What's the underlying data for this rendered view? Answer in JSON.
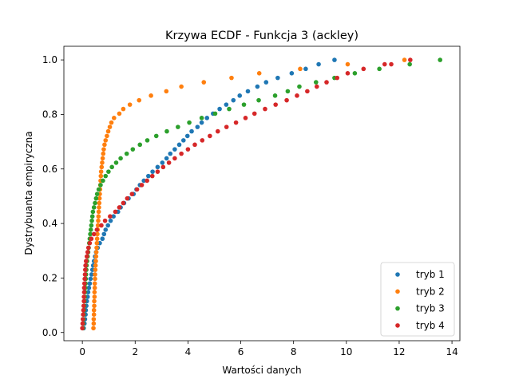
{
  "chart_data": {
    "type": "scatter",
    "title": "Krzywa ECDF - Funkcja 3 (ackley)",
    "xlabel": "Wartości danych",
    "ylabel": "Dystrybuanta empiryczna",
    "xlim": [
      -0.7,
      14.3
    ],
    "ylim": [
      -0.03,
      1.05
    ],
    "xticks": [
      0,
      2,
      4,
      6,
      8,
      10,
      12,
      14
    ],
    "yticks": [
      0.0,
      0.2,
      0.4,
      0.6,
      0.8,
      1.0
    ],
    "xtick_labels": [
      "0",
      "2",
      "4",
      "6",
      "8",
      "10",
      "12",
      "14"
    ],
    "ytick_labels": [
      "0.0",
      "0.2",
      "0.4",
      "0.6",
      "0.8",
      "1.0"
    ],
    "grid": false,
    "legend_position": "lower-right",
    "series": [
      {
        "name": "tryb 1",
        "color": "#1f77b4",
        "points": [
          [
            0.05,
            0.016
          ],
          [
            0.08,
            0.033
          ],
          [
            0.1,
            0.049
          ],
          [
            0.12,
            0.066
          ],
          [
            0.13,
            0.082
          ],
          [
            0.15,
            0.098
          ],
          [
            0.17,
            0.115
          ],
          [
            0.2,
            0.131
          ],
          [
            0.22,
            0.148
          ],
          [
            0.25,
            0.164
          ],
          [
            0.28,
            0.18
          ],
          [
            0.31,
            0.197
          ],
          [
            0.35,
            0.213
          ],
          [
            0.38,
            0.23
          ],
          [
            0.41,
            0.246
          ],
          [
            0.44,
            0.262
          ],
          [
            0.48,
            0.279
          ],
          [
            0.52,
            0.295
          ],
          [
            0.58,
            0.311
          ],
          [
            0.66,
            0.328
          ],
          [
            0.76,
            0.344
          ],
          [
            0.82,
            0.361
          ],
          [
            0.88,
            0.377
          ],
          [
            0.97,
            0.393
          ],
          [
            1.07,
            0.41
          ],
          [
            1.18,
            0.426
          ],
          [
            1.35,
            0.443
          ],
          [
            1.45,
            0.459
          ],
          [
            1.58,
            0.475
          ],
          [
            1.75,
            0.492
          ],
          [
            1.94,
            0.508
          ],
          [
            2.05,
            0.525
          ],
          [
            2.18,
            0.541
          ],
          [
            2.33,
            0.557
          ],
          [
            2.5,
            0.574
          ],
          [
            2.66,
            0.59
          ],
          [
            2.85,
            0.607
          ],
          [
            3.03,
            0.623
          ],
          [
            3.19,
            0.639
          ],
          [
            3.33,
            0.656
          ],
          [
            3.5,
            0.672
          ],
          [
            3.67,
            0.689
          ],
          [
            3.83,
            0.705
          ],
          [
            3.98,
            0.721
          ],
          [
            4.14,
            0.738
          ],
          [
            4.36,
            0.754
          ],
          [
            4.52,
            0.77
          ],
          [
            4.72,
            0.787
          ],
          [
            4.95,
            0.803
          ],
          [
            5.2,
            0.82
          ],
          [
            5.45,
            0.836
          ],
          [
            5.72,
            0.852
          ],
          [
            5.96,
            0.869
          ],
          [
            6.27,
            0.885
          ],
          [
            6.63,
            0.902
          ],
          [
            6.96,
            0.918
          ],
          [
            7.4,
            0.934
          ],
          [
            7.93,
            0.951
          ],
          [
            8.46,
            0.967
          ],
          [
            8.95,
            0.984
          ],
          [
            9.55,
            1.0
          ]
        ]
      },
      {
        "name": "tryb 2",
        "color": "#ff7f0e",
        "points": [
          [
            0.42,
            0.016
          ],
          [
            0.43,
            0.033
          ],
          [
            0.43,
            0.049
          ],
          [
            0.44,
            0.066
          ],
          [
            0.44,
            0.082
          ],
          [
            0.45,
            0.098
          ],
          [
            0.45,
            0.115
          ],
          [
            0.46,
            0.131
          ],
          [
            0.46,
            0.148
          ],
          [
            0.47,
            0.164
          ],
          [
            0.47,
            0.18
          ],
          [
            0.48,
            0.197
          ],
          [
            0.48,
            0.213
          ],
          [
            0.49,
            0.23
          ],
          [
            0.5,
            0.246
          ],
          [
            0.51,
            0.262
          ],
          [
            0.52,
            0.279
          ],
          [
            0.53,
            0.295
          ],
          [
            0.54,
            0.311
          ],
          [
            0.55,
            0.328
          ],
          [
            0.56,
            0.344
          ],
          [
            0.57,
            0.361
          ],
          [
            0.58,
            0.377
          ],
          [
            0.59,
            0.393
          ],
          [
            0.6,
            0.41
          ],
          [
            0.61,
            0.426
          ],
          [
            0.62,
            0.443
          ],
          [
            0.63,
            0.459
          ],
          [
            0.64,
            0.475
          ],
          [
            0.65,
            0.492
          ],
          [
            0.66,
            0.508
          ],
          [
            0.67,
            0.525
          ],
          [
            0.68,
            0.541
          ],
          [
            0.69,
            0.557
          ],
          [
            0.7,
            0.574
          ],
          [
            0.71,
            0.59
          ],
          [
            0.73,
            0.607
          ],
          [
            0.75,
            0.623
          ],
          [
            0.77,
            0.639
          ],
          [
            0.79,
            0.656
          ],
          [
            0.81,
            0.672
          ],
          [
            0.84,
            0.689
          ],
          [
            0.88,
            0.705
          ],
          [
            0.93,
            0.721
          ],
          [
            0.98,
            0.738
          ],
          [
            1.04,
            0.754
          ],
          [
            1.1,
            0.77
          ],
          [
            1.2,
            0.787
          ],
          [
            1.4,
            0.803
          ],
          [
            1.55,
            0.82
          ],
          [
            1.8,
            0.836
          ],
          [
            2.15,
            0.852
          ],
          [
            2.6,
            0.869
          ],
          [
            3.18,
            0.885
          ],
          [
            3.75,
            0.902
          ],
          [
            4.6,
            0.918
          ],
          [
            5.65,
            0.934
          ],
          [
            6.7,
            0.951
          ],
          [
            8.25,
            0.967
          ],
          [
            10.05,
            0.984
          ],
          [
            12.2,
            1.0
          ]
        ]
      },
      {
        "name": "tryb 3",
        "color": "#2ca02c",
        "points": [
          [
            0.02,
            0.016
          ],
          [
            0.03,
            0.033
          ],
          [
            0.04,
            0.049
          ],
          [
            0.05,
            0.066
          ],
          [
            0.06,
            0.082
          ],
          [
            0.07,
            0.098
          ],
          [
            0.08,
            0.115
          ],
          [
            0.09,
            0.131
          ],
          [
            0.1,
            0.148
          ],
          [
            0.11,
            0.164
          ],
          [
            0.12,
            0.18
          ],
          [
            0.13,
            0.197
          ],
          [
            0.14,
            0.213
          ],
          [
            0.15,
            0.23
          ],
          [
            0.16,
            0.246
          ],
          [
            0.18,
            0.262
          ],
          [
            0.2,
            0.279
          ],
          [
            0.22,
            0.295
          ],
          [
            0.24,
            0.311
          ],
          [
            0.26,
            0.328
          ],
          [
            0.28,
            0.344
          ],
          [
            0.3,
            0.361
          ],
          [
            0.32,
            0.377
          ],
          [
            0.34,
            0.393
          ],
          [
            0.36,
            0.41
          ],
          [
            0.38,
            0.426
          ],
          [
            0.4,
            0.443
          ],
          [
            0.44,
            0.459
          ],
          [
            0.48,
            0.475
          ],
          [
            0.52,
            0.492
          ],
          [
            0.56,
            0.508
          ],
          [
            0.62,
            0.525
          ],
          [
            0.69,
            0.541
          ],
          [
            0.78,
            0.557
          ],
          [
            0.88,
            0.574
          ],
          [
            0.99,
            0.59
          ],
          [
            1.12,
            0.607
          ],
          [
            1.28,
            0.623
          ],
          [
            1.45,
            0.639
          ],
          [
            1.68,
            0.656
          ],
          [
            1.91,
            0.672
          ],
          [
            2.18,
            0.689
          ],
          [
            2.46,
            0.705
          ],
          [
            2.8,
            0.721
          ],
          [
            3.2,
            0.738
          ],
          [
            3.62,
            0.754
          ],
          [
            4.05,
            0.77
          ],
          [
            4.52,
            0.787
          ],
          [
            5.03,
            0.803
          ],
          [
            5.56,
            0.82
          ],
          [
            6.12,
            0.836
          ],
          [
            6.68,
            0.852
          ],
          [
            7.3,
            0.869
          ],
          [
            7.78,
            0.885
          ],
          [
            8.22,
            0.902
          ],
          [
            8.85,
            0.918
          ],
          [
            9.55,
            0.934
          ],
          [
            10.32,
            0.951
          ],
          [
            11.25,
            0.967
          ],
          [
            12.4,
            0.984
          ],
          [
            13.55,
            1.0
          ]
        ]
      },
      {
        "name": "tryb 4",
        "color": "#d62728",
        "points": [
          [
            0.0,
            0.016
          ],
          [
            0.01,
            0.033
          ],
          [
            0.02,
            0.049
          ],
          [
            0.03,
            0.066
          ],
          [
            0.04,
            0.082
          ],
          [
            0.05,
            0.098
          ],
          [
            0.06,
            0.115
          ],
          [
            0.06,
            0.131
          ],
          [
            0.07,
            0.148
          ],
          [
            0.07,
            0.164
          ],
          [
            0.08,
            0.18
          ],
          [
            0.09,
            0.197
          ],
          [
            0.1,
            0.213
          ],
          [
            0.11,
            0.23
          ],
          [
            0.12,
            0.246
          ],
          [
            0.14,
            0.262
          ],
          [
            0.17,
            0.279
          ],
          [
            0.2,
            0.295
          ],
          [
            0.23,
            0.311
          ],
          [
            0.28,
            0.328
          ],
          [
            0.34,
            0.344
          ],
          [
            0.44,
            0.361
          ],
          [
            0.55,
            0.377
          ],
          [
            0.72,
            0.393
          ],
          [
            0.86,
            0.41
          ],
          [
            1.05,
            0.426
          ],
          [
            1.25,
            0.443
          ],
          [
            1.4,
            0.459
          ],
          [
            1.55,
            0.475
          ],
          [
            1.7,
            0.492
          ],
          [
            1.88,
            0.508
          ],
          [
            2.07,
            0.525
          ],
          [
            2.25,
            0.541
          ],
          [
            2.45,
            0.557
          ],
          [
            2.65,
            0.574
          ],
          [
            2.85,
            0.59
          ],
          [
            3.06,
            0.607
          ],
          [
            3.28,
            0.623
          ],
          [
            3.5,
            0.639
          ],
          [
            3.75,
            0.656
          ],
          [
            4.0,
            0.672
          ],
          [
            4.26,
            0.689
          ],
          [
            4.54,
            0.705
          ],
          [
            4.83,
            0.721
          ],
          [
            5.13,
            0.738
          ],
          [
            5.46,
            0.754
          ],
          [
            5.82,
            0.77
          ],
          [
            6.18,
            0.787
          ],
          [
            6.52,
            0.803
          ],
          [
            6.92,
            0.82
          ],
          [
            7.32,
            0.836
          ],
          [
            7.74,
            0.852
          ],
          [
            8.13,
            0.869
          ],
          [
            8.52,
            0.885
          ],
          [
            8.88,
            0.902
          ],
          [
            9.25,
            0.918
          ],
          [
            9.65,
            0.934
          ],
          [
            10.05,
            0.951
          ],
          [
            10.65,
            0.967
          ],
          [
            11.45,
            0.984
          ],
          [
            11.7,
            0.984
          ],
          [
            12.42,
            1.0
          ]
        ]
      }
    ]
  }
}
